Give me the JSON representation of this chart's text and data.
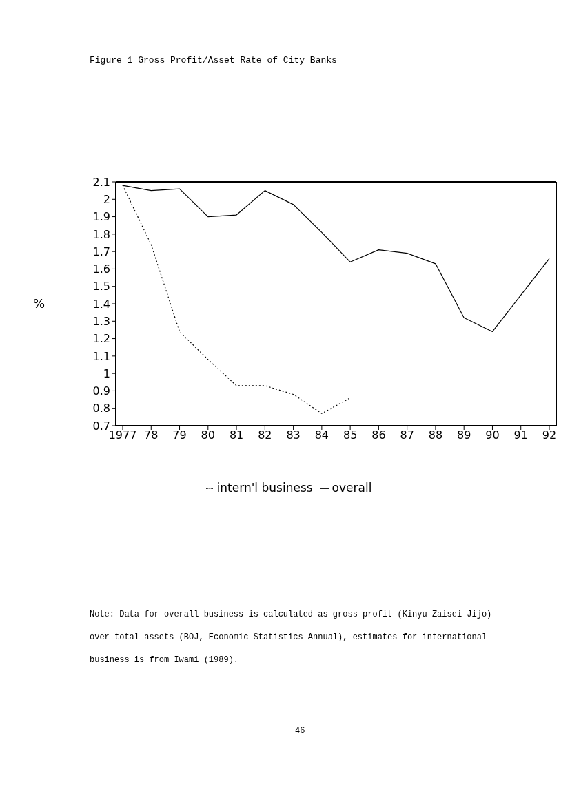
{
  "chart_data": {
    "type": "line",
    "title": "Figure 1  Gross Profit/Asset Rate of City Banks",
    "ylabel": "%",
    "categories": [
      "1977",
      "78",
      "79",
      "80",
      "81",
      "82",
      "83",
      "84",
      "85",
      "86",
      "87",
      "88",
      "89",
      "90",
      "91",
      "92"
    ],
    "series": [
      {
        "name": "overall",
        "color": "#000000",
        "line_style": "solid",
        "values": [
          2.08,
          2.05,
          2.06,
          1.9,
          1.91,
          2.05,
          1.97,
          1.81,
          1.64,
          1.71,
          1.69,
          1.63,
          1.32,
          1.24,
          1.45,
          1.66
        ]
      },
      {
        "name": "intern'l business",
        "color": "#000000",
        "line_style": "dotted",
        "values": [
          2.08,
          1.74,
          1.24,
          1.08,
          0.93,
          0.93,
          0.88,
          0.77,
          0.86,
          null,
          null,
          null,
          null,
          null,
          null,
          null
        ]
      }
    ],
    "ylim": [
      0.7,
      2.1
    ],
    "yticks": [
      0.7,
      0.8,
      0.9,
      1,
      1.1,
      1.2,
      1.3,
      1.4,
      1.5,
      1.6,
      1.7,
      1.8,
      1.9,
      2,
      2.1
    ],
    "grid": false,
    "legend": "bottom",
    "marker": "none",
    "annotations": [
      "Note: Data for overall business is calculated as gross profit (Kinyu Zaisei Jijo) over total assets (BOJ, Economic Statistics Annual), estimates for international business is from Iwami (1989).",
      "46"
    ]
  }
}
